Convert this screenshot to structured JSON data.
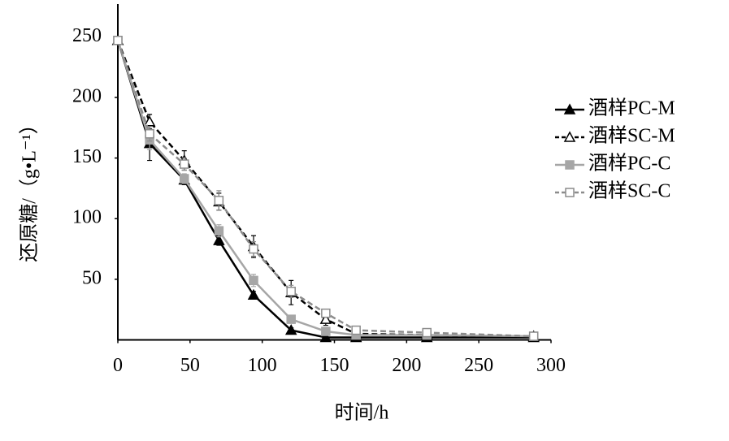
{
  "chart_data": {
    "type": "line",
    "x_label": "时间/h",
    "y_label": "还原糖/（g•L⁻¹）",
    "x": [
      0,
      22,
      46,
      70,
      94,
      120,
      144,
      165,
      214,
      288
    ],
    "series": [
      {
        "name": "酒样PC-M",
        "color": "#000000",
        "marker": "triangle",
        "filled": true,
        "dashed": false,
        "values": [
          247,
          162,
          132,
          82,
          37,
          8,
          2,
          2,
          2,
          2
        ],
        "errors": [
          0,
          14,
          4,
          4,
          3,
          2,
          1,
          1,
          1,
          1
        ]
      },
      {
        "name": "酒样SC-M",
        "color": "#000000",
        "marker": "triangle",
        "filled": false,
        "dashed": true,
        "values": [
          247,
          180,
          148,
          114,
          77,
          39,
          17,
          5,
          4,
          3
        ],
        "errors": [
          0,
          6,
          8,
          7,
          9,
          10,
          5,
          2,
          2,
          1
        ]
      },
      {
        "name": "酒样PC-C",
        "color": "#a6a6a6",
        "marker": "square",
        "filled": true,
        "dashed": false,
        "values": [
          247,
          165,
          133,
          90,
          49,
          17,
          7,
          4,
          4,
          3
        ],
        "errors": [
          0,
          8,
          4,
          5,
          5,
          3,
          2,
          1,
          1,
          1
        ]
      },
      {
        "name": "酒样SC-C",
        "color": "#8c8c8c",
        "marker": "square",
        "filled": false,
        "dashed": true,
        "values": [
          247,
          170,
          145,
          115,
          75,
          40,
          22,
          8,
          6,
          3
        ],
        "errors": [
          0,
          6,
          5,
          8,
          6,
          5,
          3,
          2,
          2,
          1
        ]
      }
    ],
    "xlim": [
      0,
      300
    ],
    "xticks": [
      0,
      50,
      100,
      150,
      200,
      250,
      300
    ],
    "ylim": [
      0,
      277
    ],
    "yticks": [
      50,
      100,
      150,
      200,
      250
    ],
    "grid": false,
    "legend": "right"
  }
}
